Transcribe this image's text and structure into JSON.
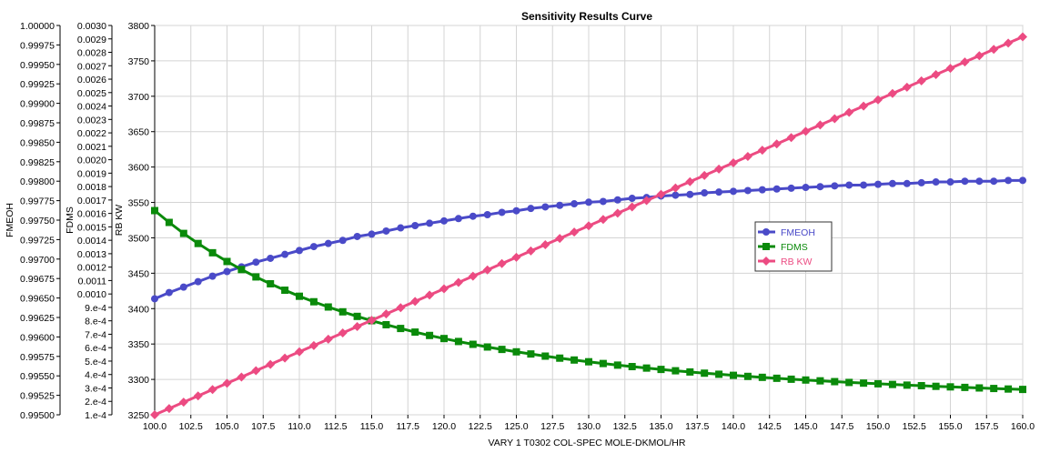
{
  "chart_data": {
    "type": "line",
    "title": "Sensitivity Results Curve",
    "xlabel": "VARY   1 T0302 COL-SPEC MOLE-DKMOL/HR",
    "xlim": [
      100,
      160
    ],
    "x_ticks": [
      "100.0",
      "102.5",
      "105.0",
      "107.5",
      "110.0",
      "112.5",
      "115.0",
      "117.5",
      "120.0",
      "122.5",
      "125.0",
      "127.5",
      "130.0",
      "132.5",
      "135.0",
      "137.5",
      "140.0",
      "142.5",
      "145.0",
      "147.5",
      "150.0",
      "152.5",
      "155.0",
      "157.5",
      "160.0"
    ],
    "grid": true,
    "legend_position": "center-right",
    "axes": [
      {
        "label": "FMEOH",
        "ylim": [
          0.995,
          1.0
        ],
        "ticks": [
          "1.00000",
          "0.99975",
          "0.99950",
          "0.99925",
          "0.99900",
          "0.99875",
          "0.99850",
          "0.99825",
          "0.99800",
          "0.99775",
          "0.99750",
          "0.99725",
          "0.99700",
          "0.99675",
          "0.99650",
          "0.99625",
          "0.99600",
          "0.99575",
          "0.99550",
          "0.99525",
          "0.99500"
        ]
      },
      {
        "label": "FDMS",
        "ylim": [
          0.0001,
          0.003
        ],
        "ticks": [
          "0.0030",
          "0.0029",
          "0.0028",
          "0.0027",
          "0.0026",
          "0.0025",
          "0.0024",
          "0.0023",
          "0.0022",
          "0.0021",
          "0.0020",
          "0.0019",
          "0.0018",
          "0.0017",
          "0.0016",
          "0.0015",
          "0.0014",
          "0.0013",
          "0.0012",
          "0.0011",
          "0.0010",
          "9.e-4",
          "8.e-4",
          "7.e-4",
          "6.e-4",
          "5.e-4",
          "4.e-4",
          "3.e-4",
          "2.e-4",
          "1.e-4"
        ]
      },
      {
        "label": "RB KW",
        "ylim": [
          3250,
          3800
        ],
        "ticks": [
          "3800",
          "3750",
          "3700",
          "3650",
          "3600",
          "3550",
          "3500",
          "3450",
          "3400",
          "3350",
          "3300",
          "3250"
        ]
      }
    ],
    "x": [
      100,
      101,
      102,
      103,
      104,
      105,
      106,
      107,
      108,
      109,
      110,
      111,
      112,
      113,
      114,
      115,
      116,
      117,
      118,
      119,
      120,
      121,
      122,
      123,
      124,
      125,
      126,
      127,
      128,
      129,
      130,
      131,
      132,
      133,
      134,
      135,
      136,
      137,
      138,
      139,
      140,
      141,
      142,
      143,
      144,
      145,
      146,
      147,
      148,
      149,
      150,
      151,
      152,
      153,
      154,
      155,
      156,
      157,
      158,
      159,
      160
    ],
    "series": [
      {
        "name": "FMEOH",
        "axis": 0,
        "color": "#4a4ac8",
        "marker": "circle",
        "values": [
          0.99649,
          0.99657,
          0.99664,
          0.99671,
          0.99678,
          0.99684,
          0.9969,
          0.99696,
          0.99701,
          0.99706,
          0.99711,
          0.99716,
          0.9972,
          0.99724,
          0.99729,
          0.99732,
          0.99736,
          0.9974,
          0.99743,
          0.99746,
          0.99749,
          0.99752,
          0.99755,
          0.99757,
          0.9976,
          0.99762,
          0.99765,
          0.99767,
          0.99769,
          0.99771,
          0.99773,
          0.99774,
          0.99776,
          0.99778,
          0.99779,
          0.99781,
          0.99782,
          0.99783,
          0.99785,
          0.99786,
          0.99787,
          0.99788,
          0.99789,
          0.9979,
          0.99791,
          0.99792,
          0.99793,
          0.99794,
          0.99795,
          0.99795,
          0.99796,
          0.99797,
          0.99797,
          0.99798,
          0.99799,
          0.99799,
          0.998,
          0.998,
          0.998,
          0.99801,
          0.99801
        ]
      },
      {
        "name": "FDMS",
        "axis": 1,
        "color": "#0a8a0a",
        "marker": "square",
        "values": [
          0.001621,
          0.001533,
          0.001451,
          0.001376,
          0.001307,
          0.001242,
          0.001182,
          0.001127,
          0.001076,
          0.001028,
          0.000983,
          0.000942,
          0.000903,
          0.000867,
          0.000833,
          0.000801,
          0.000771,
          0.000743,
          0.000716,
          0.000691,
          0.000668,
          0.000646,
          0.000625,
          0.000605,
          0.000587,
          0.000569,
          0.000553,
          0.000537,
          0.000522,
          0.000508,
          0.000495,
          0.000482,
          0.00047,
          0.000459,
          0.000448,
          0.000438,
          0.000428,
          0.000419,
          0.00041,
          0.000402,
          0.000394,
          0.000386,
          0.000379,
          0.000372,
          0.000365,
          0.000359,
          0.000353,
          0.000347,
          0.000341,
          0.000336,
          0.000331,
          0.000326,
          0.000321,
          0.000317,
          0.000312,
          0.000308,
          0.000304,
          0.0003,
          0.000296,
          0.000292,
          0.000289
        ]
      },
      {
        "name": "RB KW",
        "axis": 2,
        "color": "#ec4b82",
        "marker": "diamond",
        "values": [
          3250.0,
          3258.9,
          3267.8,
          3276.7,
          3285.6,
          3294.5,
          3303.4,
          3312.3,
          3321.2,
          3330.1,
          3339.0,
          3347.9,
          3356.8,
          3365.7,
          3374.6,
          3383.5,
          3392.4,
          3401.3,
          3410.2,
          3419.1,
          3428.0,
          3436.9,
          3445.8,
          3454.7,
          3463.6,
          3472.5,
          3481.4,
          3490.3,
          3499.2,
          3508.1,
          3517.0,
          3525.9,
          3534.8,
          3543.7,
          3552.6,
          3561.5,
          3570.4,
          3579.3,
          3588.2,
          3597.1,
          3606.0,
          3614.9,
          3623.8,
          3632.7,
          3641.6,
          3650.5,
          3659.4,
          3668.3,
          3677.2,
          3686.1,
          3695.0,
          3703.9,
          3712.8,
          3721.7,
          3730.6,
          3739.5,
          3748.4,
          3757.3,
          3766.2,
          3775.1,
          3784.0
        ]
      }
    ]
  }
}
